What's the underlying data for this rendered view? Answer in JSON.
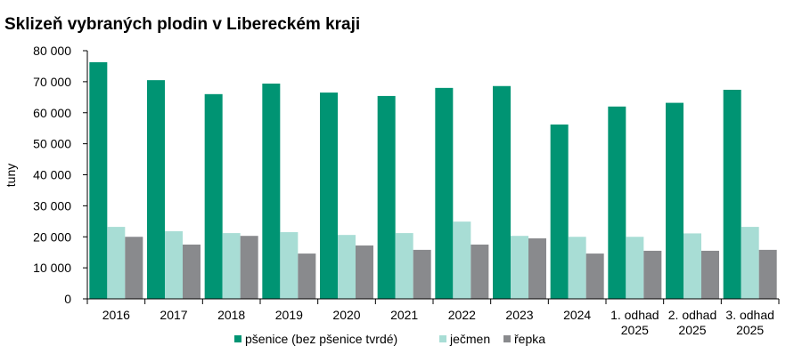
{
  "chart_data": {
    "type": "bar",
    "title": "Sklizeň vybraných plodin v Libereckém kraji",
    "ylabel": "tuny",
    "xlabel": "",
    "ylim": [
      0,
      80000
    ],
    "yticks": [
      0,
      10000,
      20000,
      30000,
      40000,
      50000,
      60000,
      70000,
      80000
    ],
    "ytick_labels": [
      "0",
      "10 000",
      "20 000",
      "30 000",
      "40 000",
      "50 000",
      "60 000",
      "70 000",
      "80 000"
    ],
    "categories": [
      [
        "2016"
      ],
      [
        "2017"
      ],
      [
        "2018"
      ],
      [
        "2019"
      ],
      [
        "2020"
      ],
      [
        "2021"
      ],
      [
        "2022"
      ],
      [
        "2023"
      ],
      [
        "2024"
      ],
      [
        "1. odhad",
        "2025"
      ],
      [
        "2. odhad",
        "2025"
      ],
      [
        "3. odhad",
        "2025"
      ]
    ],
    "series": [
      {
        "name": "pšenice (bez pšenice tvrdé)",
        "color": "#009473",
        "values": [
          76300,
          70500,
          66000,
          69400,
          66500,
          65400,
          68000,
          68600,
          56200,
          62000,
          63200,
          67400
        ]
      },
      {
        "name": "ječmen",
        "color": "#a8ddd5",
        "values": [
          23200,
          21800,
          21200,
          21500,
          20600,
          21200,
          24900,
          20300,
          20000,
          20000,
          21100,
          23200
        ]
      },
      {
        "name": "řepka",
        "color": "#898a8d",
        "values": [
          20000,
          17500,
          20300,
          14600,
          17200,
          15800,
          17500,
          19500,
          14600,
          15500,
          15500,
          15800
        ]
      }
    ],
    "grid": false,
    "legend_position": "bottom"
  }
}
